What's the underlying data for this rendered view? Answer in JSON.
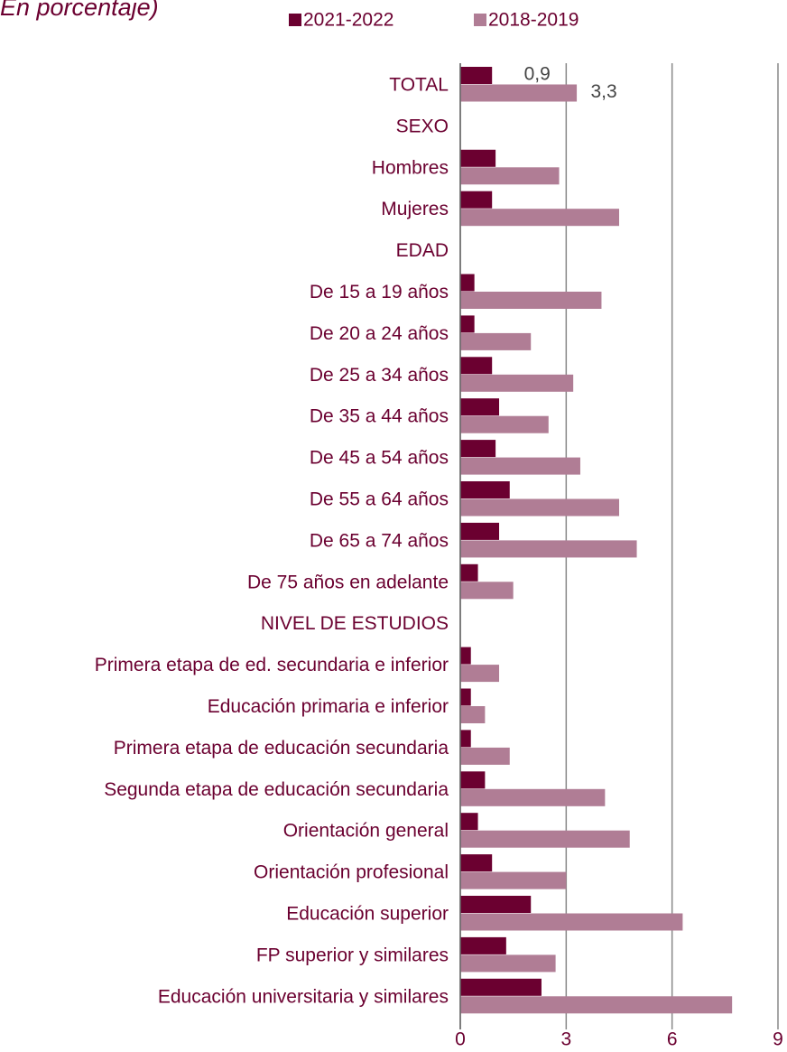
{
  "chart_data": {
    "type": "bar",
    "orientation": "horizontal",
    "title": "En porcentaje)",
    "categories": [
      "TOTAL",
      "SEXO",
      "Hombres",
      "Mujeres",
      "EDAD",
      "De 15 a 19 años",
      "De 20 a 24 años",
      "De 25 a 34 años",
      "De 35 a 44 años",
      "De 45 a 54 años",
      "De 55 a 64 años",
      "De 65 a 74 años",
      "De 75 años en adelante",
      "NIVEL DE ESTUDIOS",
      "Primera etapa de ed. secundaria e inferior",
      "Educación primaria e inferior",
      "Primera etapa de educación secundaria",
      "Segunda etapa de educación secundaria",
      "Orientación general",
      "Orientación profesional",
      "Educación superior",
      "FP superior y similares",
      "Educación universitaria y similares"
    ],
    "series": [
      {
        "name": "2021-2022",
        "color": "#6b0030",
        "values": [
          0.9,
          null,
          1.0,
          0.9,
          null,
          0.4,
          0.4,
          0.9,
          1.1,
          1.0,
          1.4,
          1.1,
          0.5,
          null,
          0.3,
          0.3,
          0.3,
          0.7,
          0.5,
          0.9,
          2.0,
          1.3,
          2.3
        ],
        "value_labels": [
          "0,9",
          null,
          null,
          null,
          null,
          null,
          null,
          null,
          null,
          null,
          null,
          null,
          null,
          null,
          null,
          null,
          null,
          null,
          null,
          null,
          null,
          null,
          null
        ]
      },
      {
        "name": "2018-2019",
        "color": "#b07d95",
        "values": [
          3.3,
          null,
          2.8,
          4.5,
          null,
          4.0,
          2.0,
          3.2,
          2.5,
          3.4,
          4.5,
          5.0,
          1.5,
          null,
          1.1,
          0.7,
          1.4,
          4.1,
          4.8,
          3.0,
          6.3,
          2.7,
          7.7
        ],
        "value_labels": [
          "3,3",
          null,
          null,
          null,
          null,
          null,
          null,
          null,
          null,
          null,
          null,
          null,
          null,
          null,
          null,
          null,
          null,
          null,
          null,
          null,
          null,
          null,
          null
        ]
      }
    ],
    "xlim": [
      0,
      9
    ],
    "xticks": [
      0,
      3,
      6,
      9
    ],
    "grid": true,
    "legend": "top"
  }
}
